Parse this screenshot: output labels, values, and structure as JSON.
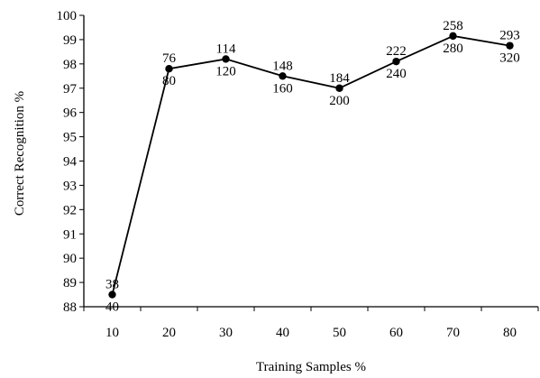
{
  "chart_data": {
    "type": "line",
    "title": "",
    "xlabel": "Training Samples %",
    "ylabel": "Correct Recognition %",
    "x": [
      10,
      20,
      30,
      40,
      50,
      60,
      70,
      80
    ],
    "xticks": [
      "10",
      "20",
      "30",
      "40",
      "50",
      "60",
      "70",
      "80"
    ],
    "yticks": [
      "88",
      "89",
      "90",
      "91",
      "92",
      "93",
      "94",
      "95",
      "96",
      "97",
      "98",
      "99",
      "100"
    ],
    "ylim": [
      88,
      100
    ],
    "series": [
      {
        "values": [
          88.5,
          97.8,
          98.2,
          97.5,
          97.0,
          98.1,
          99.15,
          98.75
        ],
        "labels_above": [
          "38",
          "76",
          "114",
          "148",
          "184",
          "222",
          "258",
          "293"
        ],
        "labels_below": [
          "40",
          "80",
          "120",
          "160",
          "200",
          "240",
          "280",
          "320"
        ]
      }
    ],
    "grid": false,
    "colors": {
      "line": "#000000",
      "marker": "#000000"
    }
  }
}
